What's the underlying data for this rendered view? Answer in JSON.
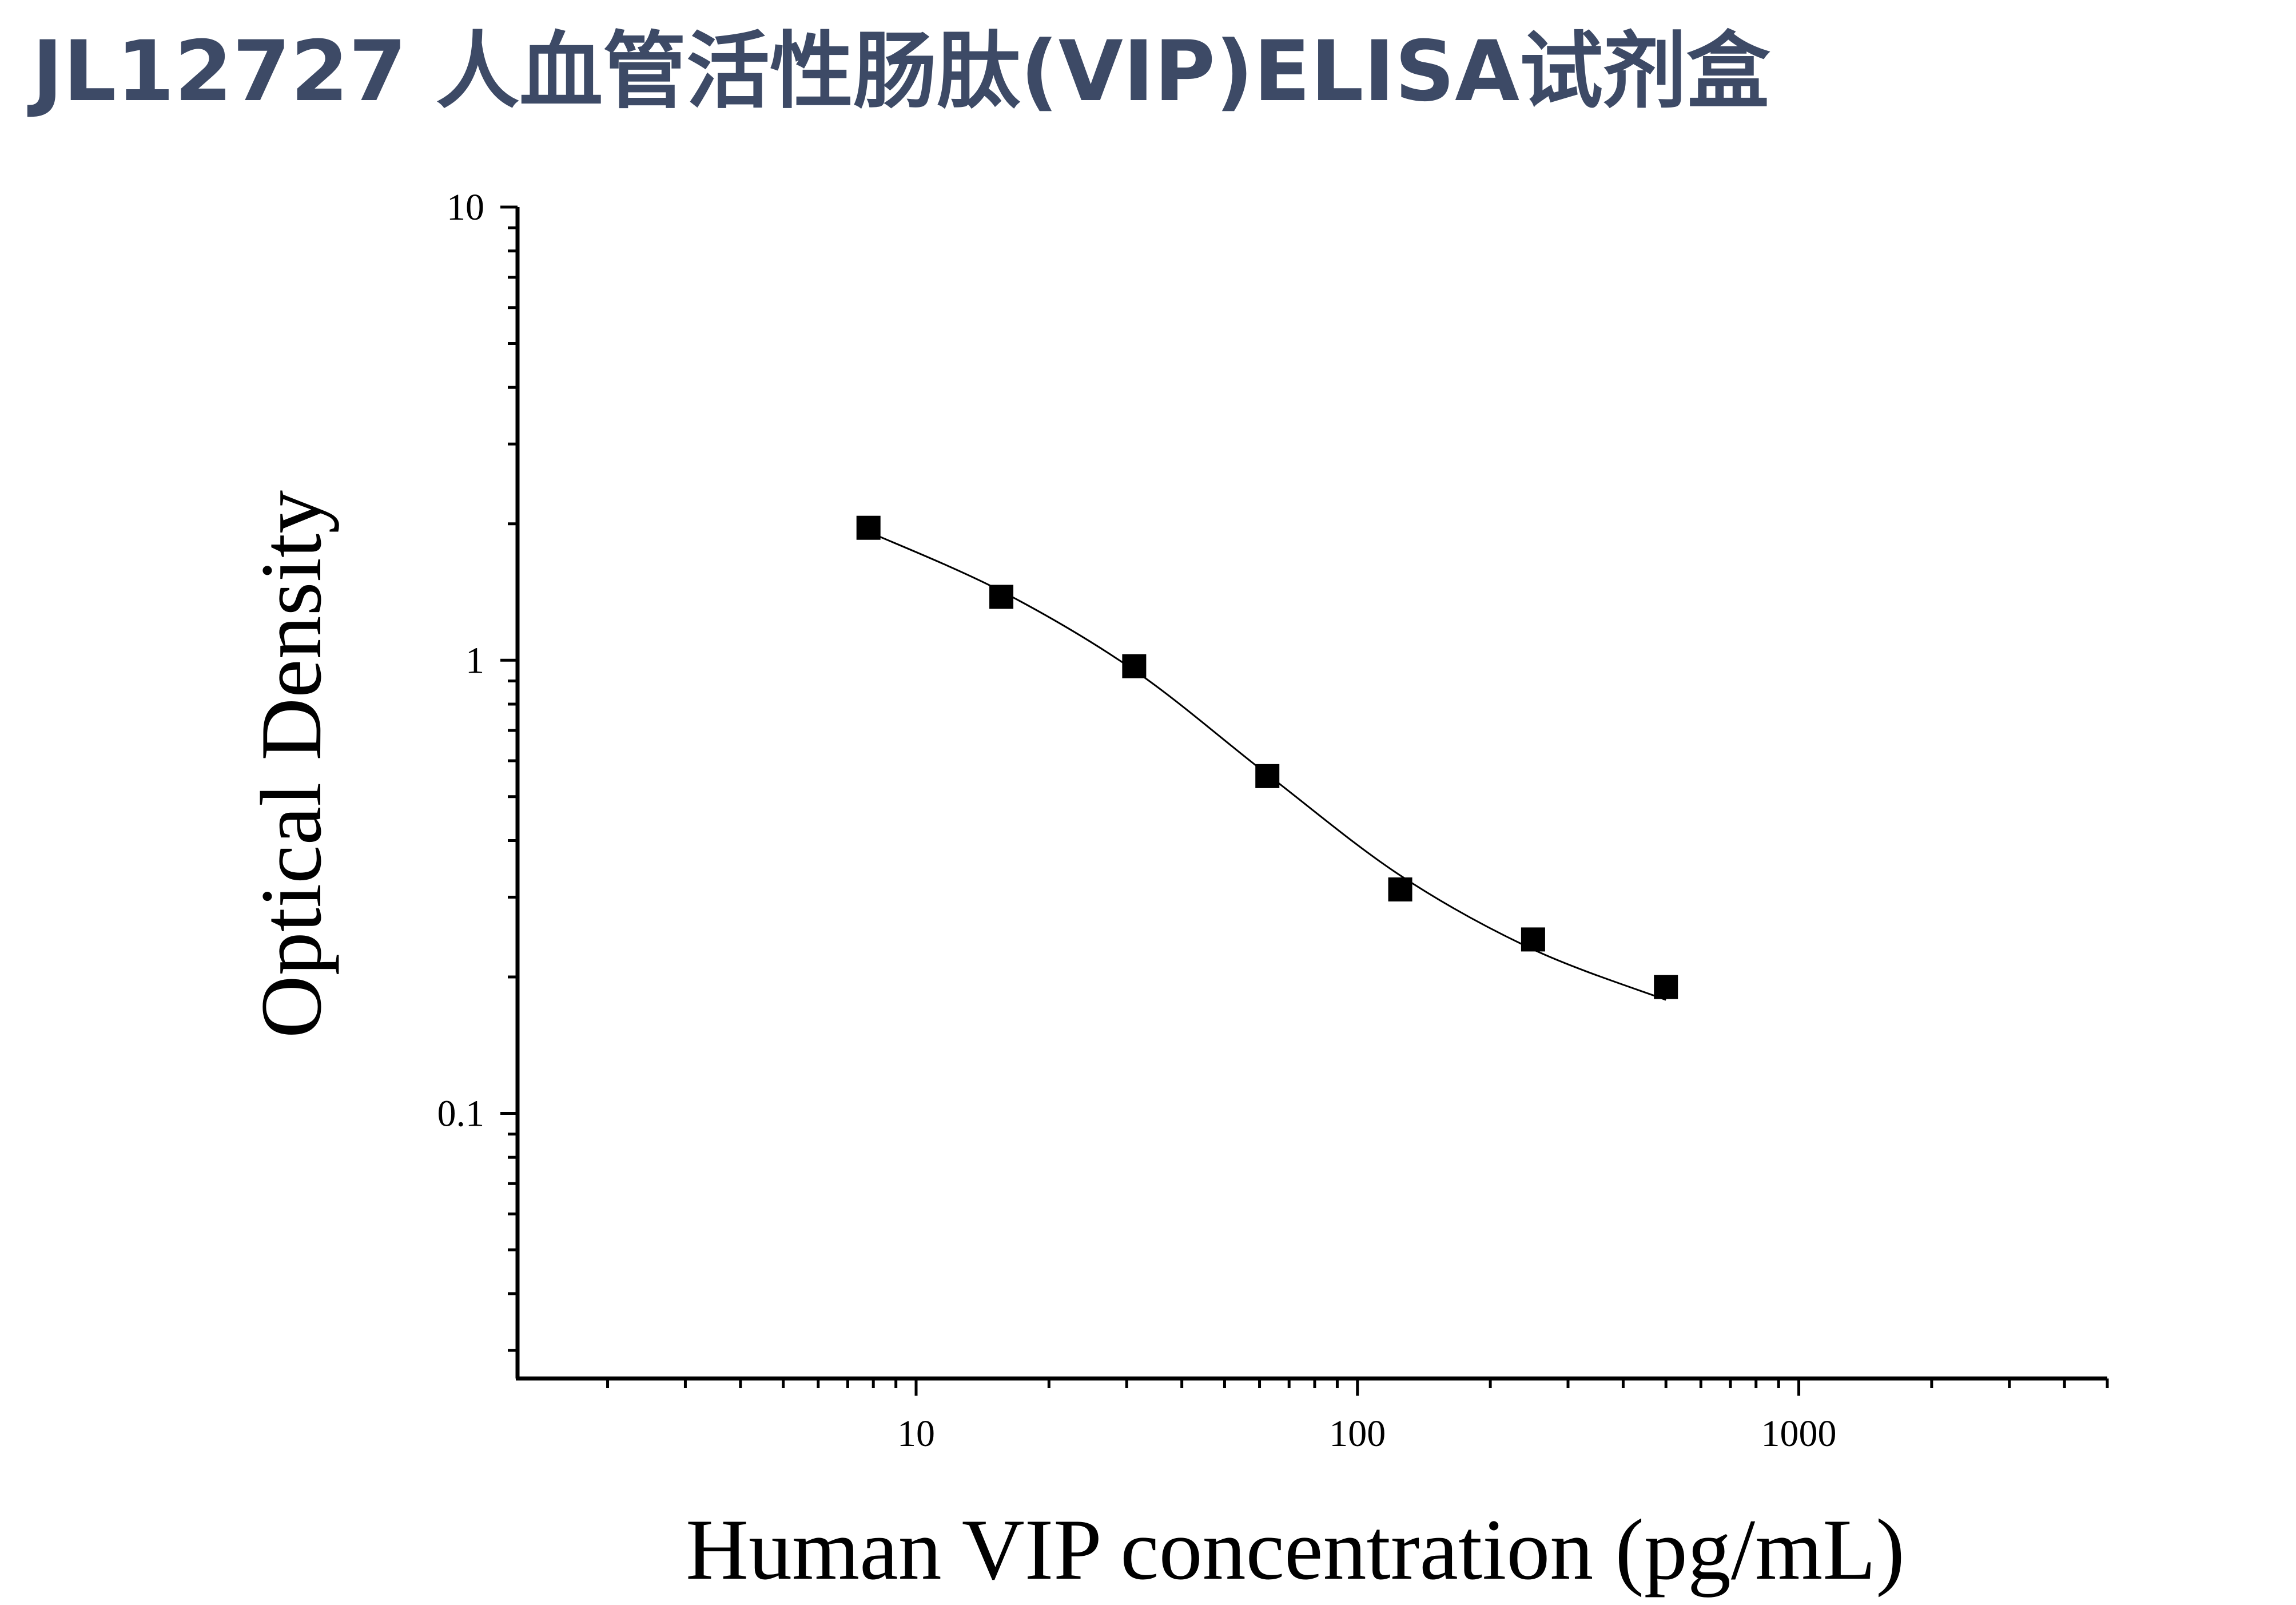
{
  "page_title": "JL12727 人血管活性肠肽(VIP)ELISA试剂盒",
  "chart_data": {
    "type": "scatter",
    "xlabel": "Human VIP concentration (pg/mL)",
    "ylabel": "Optical Density",
    "x_scale": "log",
    "y_scale": "log",
    "xlim": [
      1.25,
      5000
    ],
    "ylim": [
      0.026,
      10
    ],
    "x_ticks": [
      10,
      100,
      1000
    ],
    "x_tick_labels": [
      "10",
      "100",
      "1000"
    ],
    "y_ticks": [
      0.1,
      1,
      10
    ],
    "y_tick_labels": [
      "0.1",
      "1",
      "10"
    ],
    "grid": false,
    "legend": "none",
    "marker": "square",
    "marker_color": "#000000",
    "points": [
      {
        "x": 7.8,
        "y": 1.96
      },
      {
        "x": 15.6,
        "y": 1.38
      },
      {
        "x": 31.2,
        "y": 0.97
      },
      {
        "x": 62.5,
        "y": 0.555
      },
      {
        "x": 125,
        "y": 0.312
      },
      {
        "x": 250,
        "y": 0.242
      },
      {
        "x": 500,
        "y": 0.19
      }
    ],
    "fit_curve": {
      "type": "4PL",
      "x_range": [
        7.8,
        500
      ],
      "points": [
        {
          "x": 7.8,
          "y": 1.92
        },
        {
          "x": 15.6,
          "y": 1.42
        },
        {
          "x": 31.2,
          "y": 0.95
        },
        {
          "x": 62.5,
          "y": 0.56
        },
        {
          "x": 125,
          "y": 0.335
        },
        {
          "x": 250,
          "y": 0.23
        },
        {
          "x": 500,
          "y": 0.178
        }
      ]
    }
  }
}
